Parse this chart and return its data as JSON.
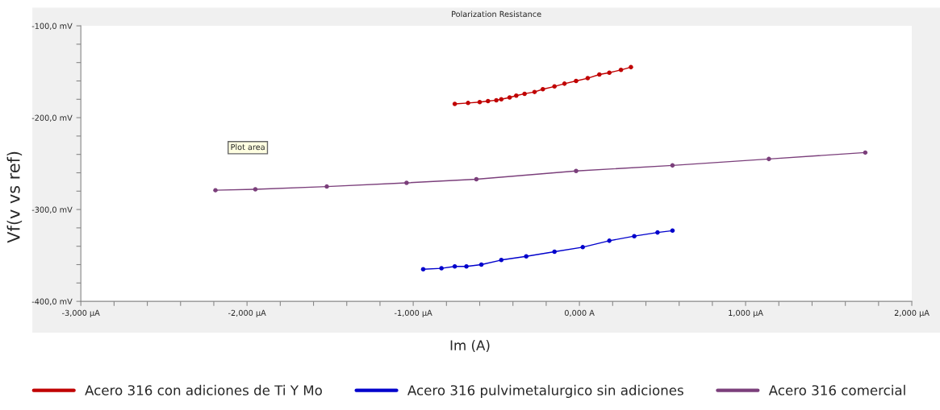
{
  "chart_data": {
    "type": "line",
    "title": "Polarization Resistance",
    "xlabel": "Im (A)",
    "ylabel": "Vf(v vs ref)",
    "annotations": [
      "Plot area"
    ],
    "xlim": [
      -3,
      2
    ],
    "ylim": [
      -400,
      -100
    ],
    "xticks": [
      {
        "value": -3,
        "label": "-3,000 µA"
      },
      {
        "value": -2.8,
        "label": null
      },
      {
        "value": -2.6,
        "label": null
      },
      {
        "value": -2.4,
        "label": null
      },
      {
        "value": -2.2,
        "label": null
      },
      {
        "value": -2,
        "label": "-2,000 µA"
      },
      {
        "value": -1.8,
        "label": null
      },
      {
        "value": -1.6,
        "label": null
      },
      {
        "value": -1.4,
        "label": null
      },
      {
        "value": -1.2,
        "label": null
      },
      {
        "value": -1,
        "label": "-1,000 µA"
      },
      {
        "value": -0.8,
        "label": null
      },
      {
        "value": -0.6,
        "label": null
      },
      {
        "value": -0.4,
        "label": null
      },
      {
        "value": -0.2,
        "label": null
      },
      {
        "value": 0,
        "label": "0,000 A"
      },
      {
        "value": 0.2,
        "label": null
      },
      {
        "value": 0.4,
        "label": null
      },
      {
        "value": 0.6,
        "label": null
      },
      {
        "value": 0.8,
        "label": null
      },
      {
        "value": 1,
        "label": "1,000 µA"
      },
      {
        "value": 1.2,
        "label": null
      },
      {
        "value": 1.4,
        "label": null
      },
      {
        "value": 1.6,
        "label": null
      },
      {
        "value": 1.8,
        "label": null
      },
      {
        "value": 2,
        "label": "2,000 µA"
      }
    ],
    "yticks": [
      {
        "value": -400,
        "label": "-400,0 mV"
      },
      {
        "value": -380,
        "label": null
      },
      {
        "value": -360,
        "label": null
      },
      {
        "value": -340,
        "label": null
      },
      {
        "value": -320,
        "label": null
      },
      {
        "value": -300,
        "label": "-300,0 mV"
      },
      {
        "value": -280,
        "label": null
      },
      {
        "value": -260,
        "label": null
      },
      {
        "value": -240,
        "label": null
      },
      {
        "value": -220,
        "label": null
      },
      {
        "value": -200,
        "label": "-200,0 mV"
      },
      {
        "value": -180,
        "label": null
      },
      {
        "value": -160,
        "label": null
      },
      {
        "value": -140,
        "label": null
      },
      {
        "value": -120,
        "label": null
      },
      {
        "value": -100,
        "label": "-100,0 mV"
      }
    ],
    "grid": false,
    "legend": "bottom",
    "marker": "circle",
    "line_style": "solid",
    "series": [
      {
        "name": "Acero 316 con adiciones de Ti Y Mo",
        "color": "#c00000",
        "x": [
          -0.75,
          -0.67,
          -0.6,
          -0.55,
          -0.5,
          -0.47,
          -0.42,
          -0.38,
          -0.33,
          -0.27,
          -0.22,
          -0.15,
          -0.09,
          -0.02,
          0.05,
          0.12,
          0.18,
          0.25,
          0.31
        ],
        "values": [
          -185,
          -184,
          -183,
          -182,
          -181,
          -180,
          -178,
          -176,
          -174,
          -172,
          -169,
          -166,
          -163,
          -160,
          -157,
          -153,
          -151,
          -148,
          -145
        ]
      },
      {
        "name": "Acero 316 pulvimetalurgico sin adiciones",
        "color": "#0000cc",
        "x": [
          -0.94,
          -0.83,
          -0.75,
          -0.68,
          -0.59,
          -0.47,
          -0.32,
          -0.15,
          0.02,
          0.18,
          0.33,
          0.47,
          0.56
        ],
        "values": [
          -365,
          -364,
          -362,
          -362,
          -360,
          -355,
          -351,
          -346,
          -341,
          -334,
          -329,
          -325,
          -323
        ]
      },
      {
        "name": "Acero 316 comercial",
        "color": "#7b3f7b",
        "x": [
          -2.19,
          -1.95,
          -1.52,
          -1.04,
          -0.62,
          -0.02,
          0.56,
          1.14,
          1.72
        ],
        "values": [
          -279,
          -278,
          -275,
          -271,
          -267,
          -258,
          -252,
          -245,
          -238
        ]
      }
    ]
  }
}
